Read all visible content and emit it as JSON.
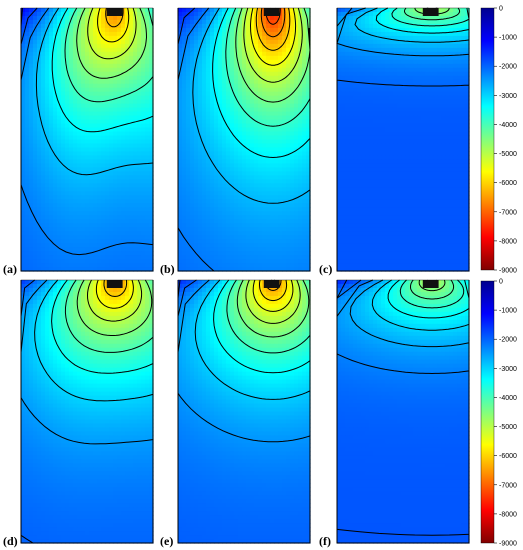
{
  "colormap": [
    "#00008f",
    "#0000ff",
    "#0080ff",
    "#00ffff",
    "#80ff80",
    "#ffff00",
    "#ff8000",
    "#ff0000",
    "#800000"
  ],
  "colorbar": {
    "min": -9000,
    "max": 0,
    "ticks": [
      "0",
      "-1000",
      "-2000",
      "-3000",
      "-4000",
      "-5000",
      "-6000",
      "-7000",
      "-8000",
      "-9000"
    ]
  },
  "panels": [
    {
      "label": "(a)",
      "min_value": -9000,
      "spread": 1.0,
      "depth": 1.0,
      "bulge": 0.15
    },
    {
      "label": "(b)",
      "min_value": -8800,
      "spread": 1.05,
      "depth": 1.1,
      "bulge": 0.0
    },
    {
      "label": "(c)",
      "min_value": -6500,
      "spread": 1.6,
      "depth": 0.28,
      "bulge": 0.0
    },
    {
      "label": "(d)",
      "min_value": -8000,
      "spread": 1.3,
      "depth": 0.85,
      "bulge": 0.05
    },
    {
      "label": "(e)",
      "min_value": -7800,
      "spread": 1.25,
      "depth": 0.8,
      "bulge": 0.0
    },
    {
      "label": "(f)",
      "min_value": -6000,
      "spread": 1.4,
      "depth": 0.45,
      "bulge": 0.0
    }
  ]
}
